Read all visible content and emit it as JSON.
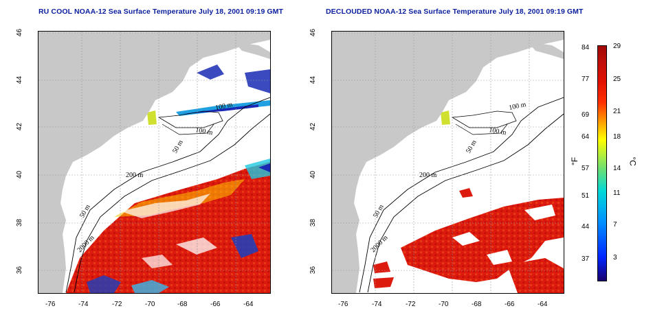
{
  "left_panel": {
    "title": "RU COOL NOAA-12 Sea Surface Temperature July 18, 2001 09:19 GMT",
    "contours": [
      "100 m",
      "100 m",
      "50 m",
      "200 m",
      "50 m",
      "2000 m"
    ]
  },
  "right_panel": {
    "title": "DECLOUDED NOAA-12 Sea Surface Temperature July 18, 2001 09:19 GMT",
    "contours": [
      "100 m",
      "100 m",
      "50 m",
      "200 m",
      "50 m",
      "2000 m"
    ]
  },
  "lat_ticks": [
    "46",
    "44",
    "42",
    "40",
    "38",
    "36"
  ],
  "lon_ticks": [
    "-76",
    "-74",
    "-72",
    "-70",
    "-68",
    "-66",
    "-64"
  ],
  "colorbar": {
    "fahrenheit_label": "°F",
    "celsius_label": "°C",
    "fahrenheit_ticks": [
      "84",
      "77",
      "69",
      "64",
      "57",
      "51",
      "44",
      "37"
    ],
    "celsius_ticks": [
      "29",
      "25",
      "21",
      "18",
      "14",
      "11",
      "7",
      "3"
    ]
  },
  "colors": {
    "title": "#0a1e9e",
    "land": "#c8c8c8",
    "warm": "#dd1a0e",
    "cold": "#1a2ab5"
  }
}
